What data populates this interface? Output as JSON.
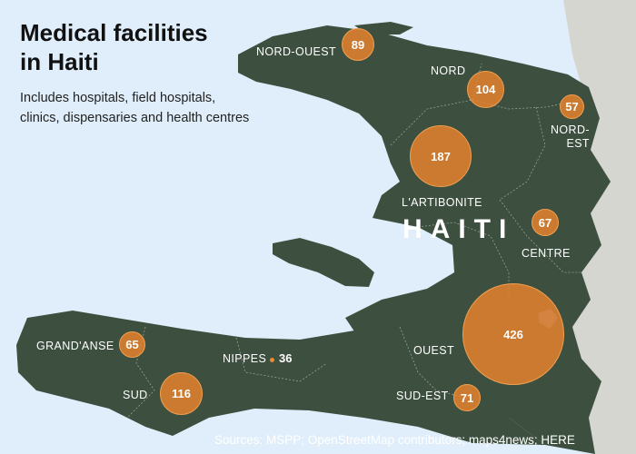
{
  "header": {
    "title_line1": "Medical facilities",
    "title_line2": "in Haiti",
    "subtitle_line1": "Includes hospitals, field hospitals,",
    "subtitle_line2": "clinics, dispensaries and health centres"
  },
  "map": {
    "country_label": "HAITI",
    "colors": {
      "water": "#dfeefa",
      "land": "#3d4f3f",
      "neighbor": "#d6d6d0",
      "bubble": "#ec842c",
      "label": "#ffffff"
    }
  },
  "departments": [
    {
      "name": "NORD-OUEST",
      "count": 89
    },
    {
      "name": "NORD",
      "count": 104
    },
    {
      "name_line1": "NORD-",
      "name_line2": "EST",
      "count": 57
    },
    {
      "name": "L'ARTIBONITE",
      "count": 187
    },
    {
      "name": "CENTRE",
      "count": 67
    },
    {
      "name": "OUEST",
      "count": 426
    },
    {
      "name": "GRAND'ANSE",
      "count": 65
    },
    {
      "name": "NIPPES",
      "count": 36
    },
    {
      "name": "SUD",
      "count": 116
    },
    {
      "name": "SUD-EST",
      "count": 71
    }
  ],
  "footer": {
    "source": "Sources: MSPP; OpenStreetMap contributors; maps4news; HERE"
  }
}
